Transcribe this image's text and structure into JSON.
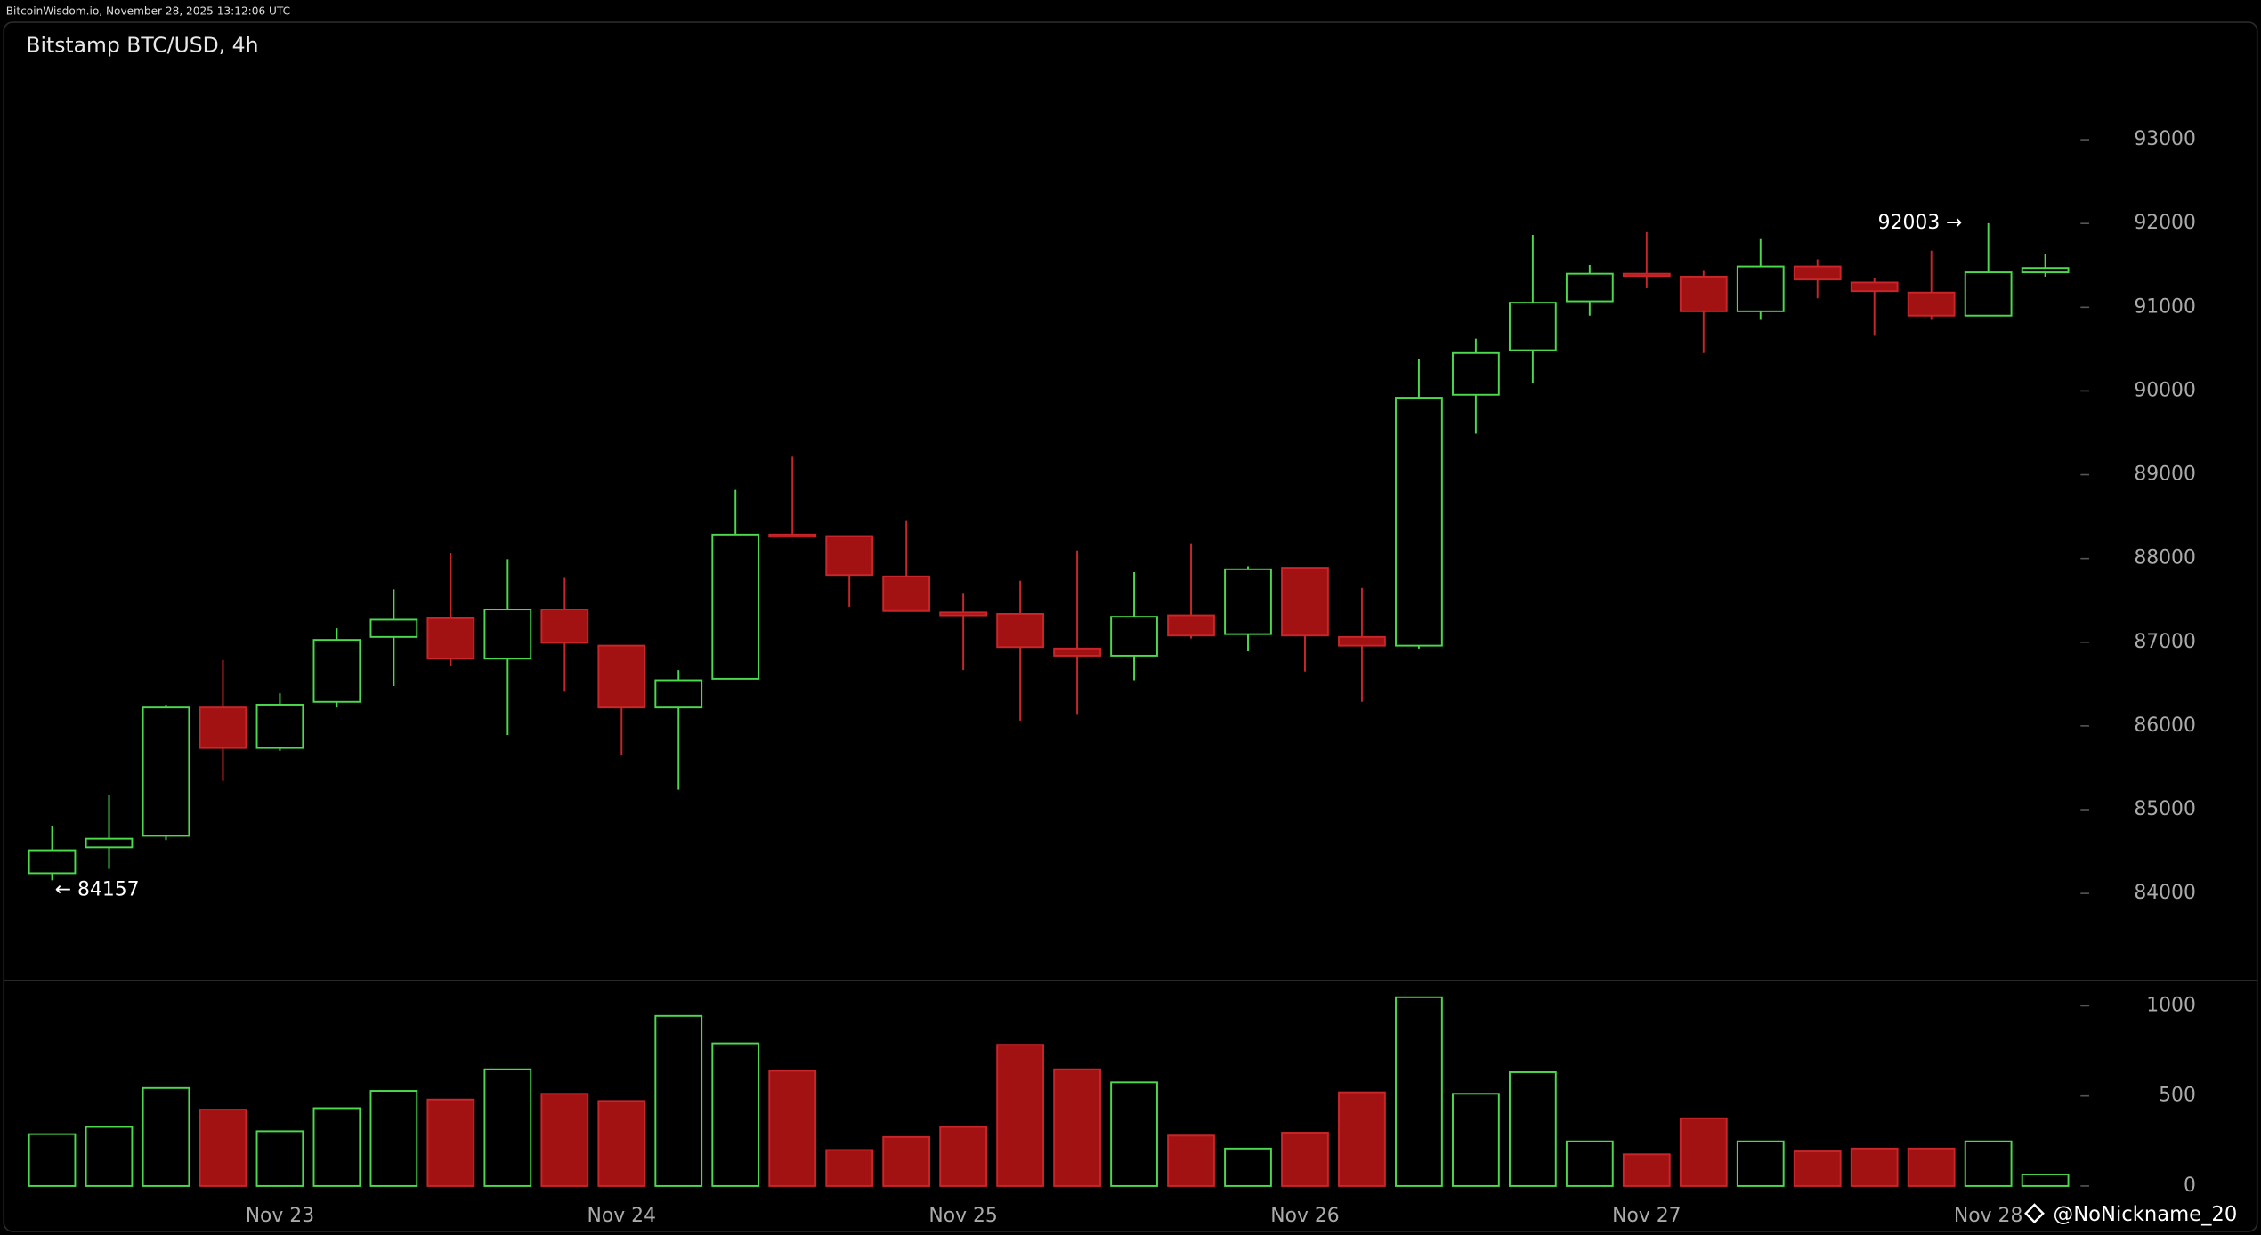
{
  "header": "BitcoinWisdom.io, November 28, 2025 13:12:06 UTC",
  "watermark": "@NoNickname_20",
  "chart_data": [
    {
      "type": "candlestick",
      "title": "Bitstamp BTC/USD, 4h",
      "open": [
        84241,
        84550,
        84687,
        86220,
        85737,
        86288,
        87063,
        87286,
        86804,
        87390,
        86959,
        86220,
        86563,
        88285,
        88267,
        87786,
        87355,
        87338,
        86925,
        86839,
        87321,
        87097,
        87889,
        87063,
        86959,
        89954,
        90487,
        91072,
        91400,
        91365,
        90952,
        91486,
        91296,
        91176,
        90900,
        91417
      ],
      "high": [
        84809,
        85170,
        86254,
        86787,
        86391,
        87166,
        87631,
        88061,
        87992,
        87768,
        86959,
        86667,
        88818,
        89214,
        88267,
        88457,
        87579,
        87734,
        88095,
        87837,
        88181,
        87906,
        87889,
        87648,
        90384,
        90625,
        91864,
        91503,
        91898,
        91434,
        91813,
        91572,
        91348,
        91675,
        92003,
        91640
      ],
      "low": [
        84157,
        84292,
        84636,
        85342,
        85703,
        86220,
        86477,
        86718,
        85892,
        86409,
        85651,
        85238,
        86563,
        88267,
        87424,
        87372,
        86667,
        86064,
        86133,
        86546,
        87045,
        86891,
        86650,
        86288,
        86925,
        89489,
        90092,
        90900,
        91227,
        90453,
        90849,
        91107,
        90659,
        90849,
        90900,
        91365
      ],
      "close": [
        84516,
        84653,
        86220,
        85737,
        86254,
        87028,
        87269,
        86804,
        87390,
        86994,
        86220,
        86546,
        88285,
        88267,
        87803,
        87372,
        87321,
        86942,
        86839,
        87304,
        87080,
        87871,
        87080,
        86959,
        89919,
        90453,
        91055,
        91400,
        91382,
        90952,
        91486,
        91331,
        91193,
        90900,
        91417,
        91469
      ],
      "up_color": "#4cd94c",
      "down_color": "#a31212",
      "ylim": [
        82967,
        94411
      ],
      "yticks": [
        84000,
        85000,
        86000,
        87000,
        88000,
        89000,
        90000,
        91000,
        92000,
        93000
      ],
      "annotations": [
        {
          "text": "92003 →",
          "value": 92003
        },
        {
          "text": "← 84157",
          "value": 84157
        }
      ]
    },
    {
      "type": "bar",
      "categories": [
        null,
        null,
        null,
        null,
        "Nov 23",
        null,
        null,
        null,
        null,
        null,
        "Nov 24",
        null,
        null,
        null,
        null,
        null,
        "Nov 25",
        null,
        null,
        null,
        null,
        null,
        "Nov 26",
        null,
        null,
        null,
        null,
        null,
        "Nov 27",
        null,
        null,
        null,
        null,
        null,
        "Nov 28",
        null
      ],
      "values": [
        288,
        328,
        544,
        424,
        304,
        432,
        528,
        480,
        648,
        512,
        472,
        944,
        792,
        640,
        200,
        272,
        328,
        784,
        648,
        576,
        280,
        208,
        296,
        520,
        1048,
        512,
        632,
        248,
        176,
        376,
        248,
        192,
        208,
        208,
        248,
        64
      ],
      "ylim": [
        -96,
        1136
      ],
      "yticks": [
        0,
        500,
        1000
      ]
    }
  ]
}
